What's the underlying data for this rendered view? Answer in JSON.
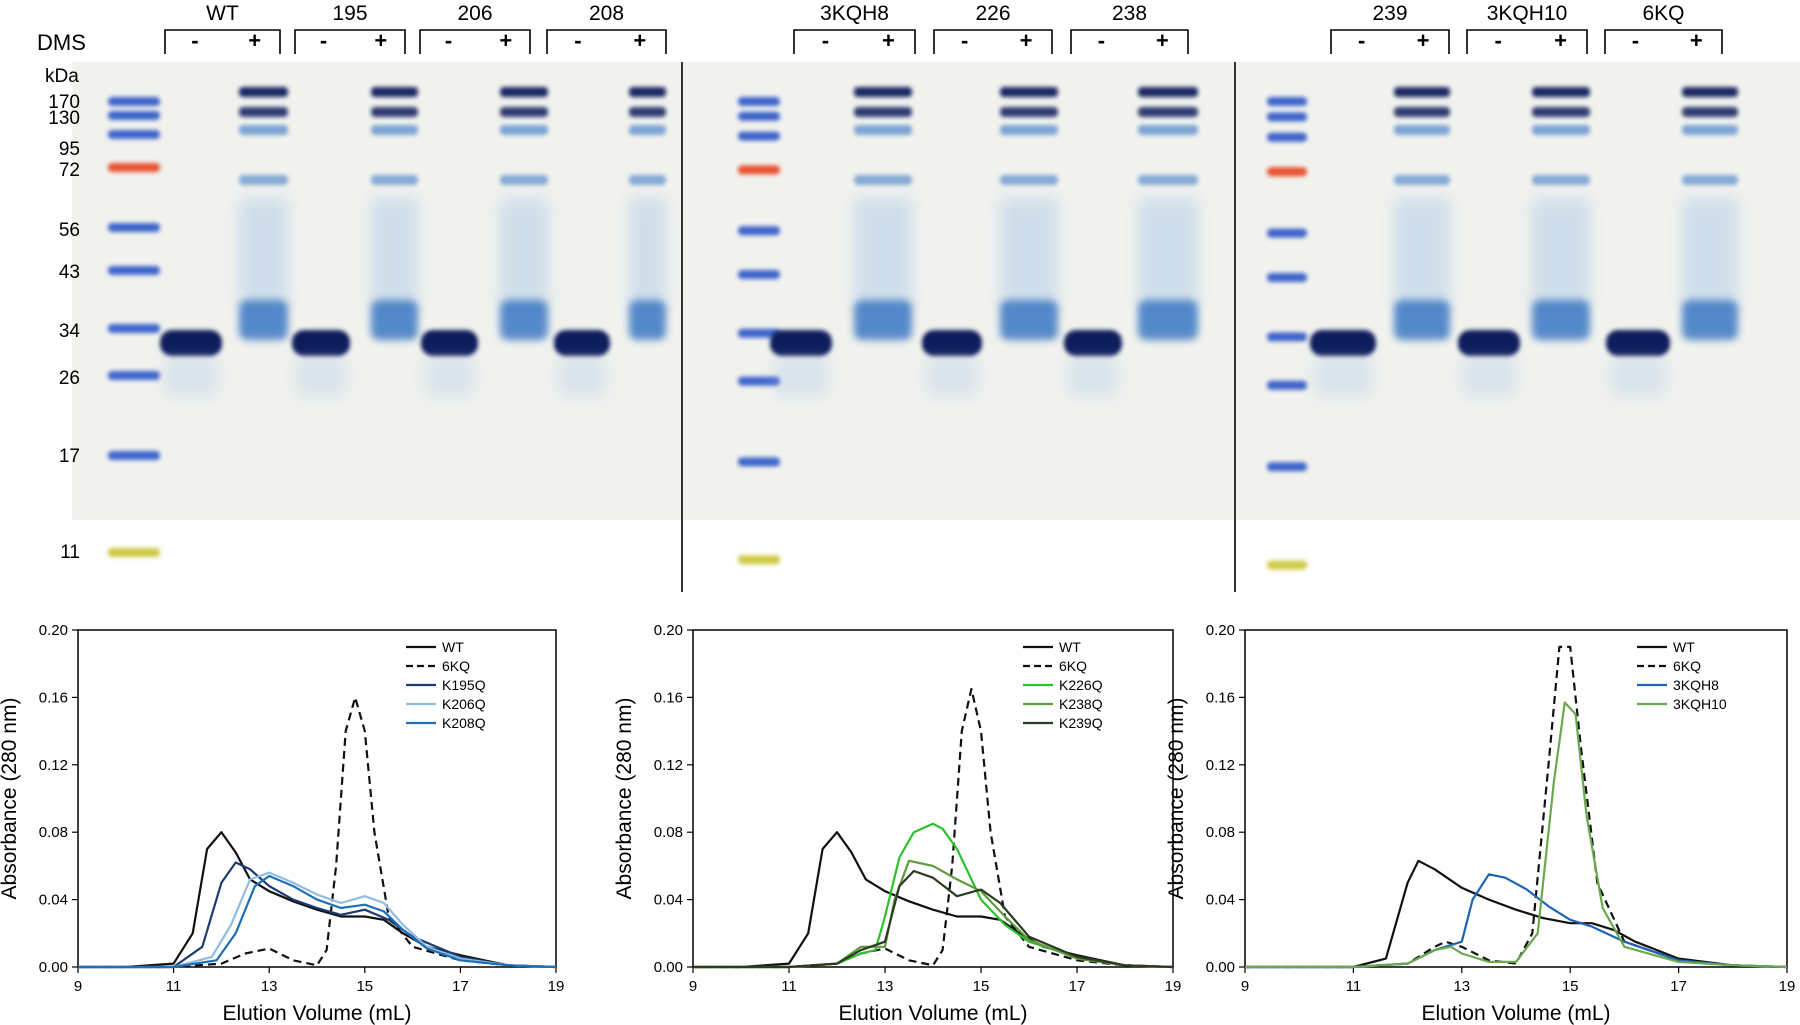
{
  "gel": {
    "dms_label": "DMS",
    "kda_label": "kDa",
    "minus": "-",
    "plus": "+",
    "markers": [
      {
        "label": "170",
        "color": "#2b55c8"
      },
      {
        "label": "130",
        "color": "#2b55c8"
      },
      {
        "label": "95",
        "color": "#2b55c8"
      },
      {
        "label": "72",
        "color": "#e8401c"
      },
      {
        "label": "56",
        "color": "#2b55c8"
      },
      {
        "label": "43",
        "color": "#2b55c8"
      },
      {
        "label": "34",
        "color": "#2b55c8"
      },
      {
        "label": "26",
        "color": "#2b55c8"
      },
      {
        "label": "17",
        "color": "#2b55c8"
      },
      {
        "label": "11",
        "color": "#c9c430"
      }
    ],
    "panels": [
      {
        "samples": [
          "WT",
          "195",
          "206",
          "208"
        ]
      },
      {
        "samples": [
          "3KQH8",
          "226",
          "238"
        ]
      },
      {
        "samples": [
          "239",
          "3KQH10",
          "6KQ"
        ]
      }
    ],
    "colors": {
      "band_dark": "#0c1f5c",
      "band_mid": "#2d6fc1",
      "band_light": "#8fb8e3",
      "gel_bg": "#f1f2ee"
    }
  },
  "chart_data": [
    {
      "type": "line",
      "xlabel": "Elution Volume (mL)",
      "ylabel": "Absorbance (280 nm)",
      "xlim": [
        9,
        19
      ],
      "ylim": [
        0,
        0.2
      ],
      "xticks": [
        "9",
        "11",
        "13",
        "15",
        "17",
        "19"
      ],
      "yticks": [
        "0.00",
        "0.04",
        "0.08",
        "0.12",
        "0.16",
        "0.20"
      ],
      "legend_position": "top-right",
      "series": [
        {
          "name": "WT",
          "color": "#111111",
          "dash": false,
          "x": [
            9,
            10,
            11,
            11.4,
            11.7,
            12,
            12.3,
            12.6,
            13,
            13.5,
            14,
            14.5,
            15,
            15.4,
            15.8,
            16.3,
            17,
            17.5,
            18,
            19
          ],
          "y": [
            0,
            0,
            0.002,
            0.02,
            0.07,
            0.08,
            0.068,
            0.052,
            0.045,
            0.039,
            0.034,
            0.03,
            0.03,
            0.028,
            0.02,
            0.012,
            0.007,
            0.004,
            0.001,
            0
          ]
        },
        {
          "name": "6KQ",
          "color": "#111111",
          "dash": true,
          "x": [
            9,
            11,
            12,
            12.5,
            13,
            13.5,
            14,
            14.2,
            14.4,
            14.6,
            14.8,
            15,
            15.2,
            15.5,
            16,
            17,
            18,
            19
          ],
          "y": [
            0,
            0,
            0.002,
            0.008,
            0.011,
            0.004,
            0.001,
            0.01,
            0.06,
            0.14,
            0.16,
            0.14,
            0.08,
            0.03,
            0.012,
            0.004,
            0.001,
            0
          ]
        },
        {
          "name": "K195Q",
          "color": "#1f3b73",
          "dash": false,
          "x": [
            9,
            11,
            11.6,
            12,
            12.3,
            12.6,
            13,
            13.5,
            14,
            14.5,
            15,
            15.5,
            16,
            17,
            18,
            19
          ],
          "y": [
            0,
            0,
            0.012,
            0.05,
            0.062,
            0.058,
            0.048,
            0.04,
            0.035,
            0.031,
            0.034,
            0.028,
            0.018,
            0.006,
            0.001,
            0
          ]
        },
        {
          "name": "K206Q",
          "color": "#8fbde3",
          "dash": false,
          "x": [
            9,
            11,
            11.8,
            12.2,
            12.6,
            13,
            13.5,
            14,
            14.5,
            15,
            15.4,
            15.8,
            16.3,
            17,
            18,
            19
          ],
          "y": [
            0,
            0,
            0.006,
            0.025,
            0.052,
            0.056,
            0.05,
            0.043,
            0.038,
            0.042,
            0.038,
            0.025,
            0.012,
            0.005,
            0.001,
            0
          ]
        },
        {
          "name": "K208Q",
          "color": "#1f6fb4",
          "dash": false,
          "x": [
            9,
            11,
            11.9,
            12.3,
            12.7,
            13,
            13.5,
            14,
            14.5,
            15,
            15.4,
            15.8,
            16.3,
            17,
            18,
            19
          ],
          "y": [
            0,
            0,
            0.004,
            0.02,
            0.048,
            0.054,
            0.048,
            0.04,
            0.035,
            0.037,
            0.033,
            0.022,
            0.011,
            0.004,
            0.001,
            0
          ]
        }
      ]
    },
    {
      "type": "line",
      "xlabel": "Elution Volume (mL)",
      "ylabel": "Absorbance (280 nm)",
      "xlim": [
        9,
        19
      ],
      "ylim": [
        0,
        0.2
      ],
      "xticks": [
        "9",
        "11",
        "13",
        "15",
        "17",
        "19"
      ],
      "yticks": [
        "0.00",
        "0.04",
        "0.08",
        "0.12",
        "0.16",
        "0.20"
      ],
      "legend_position": "top-right",
      "series": [
        {
          "name": "WT",
          "color": "#111111",
          "dash": false,
          "x": [
            9,
            10,
            11,
            11.4,
            11.7,
            12,
            12.3,
            12.6,
            13,
            13.5,
            14,
            14.5,
            15,
            15.4,
            15.8,
            16.3,
            17,
            17.5,
            18,
            19
          ],
          "y": [
            0,
            0,
            0.002,
            0.02,
            0.07,
            0.08,
            0.068,
            0.052,
            0.045,
            0.039,
            0.034,
            0.03,
            0.03,
            0.028,
            0.02,
            0.012,
            0.007,
            0.004,
            0.001,
            0
          ]
        },
        {
          "name": "6KQ",
          "color": "#111111",
          "dash": true,
          "x": [
            9,
            11,
            12,
            12.5,
            13,
            13.5,
            14,
            14.2,
            14.4,
            14.6,
            14.8,
            15,
            15.2,
            15.5,
            16,
            17,
            18,
            19
          ],
          "y": [
            0,
            0,
            0.002,
            0.008,
            0.011,
            0.004,
            0.001,
            0.01,
            0.06,
            0.14,
            0.165,
            0.14,
            0.08,
            0.03,
            0.012,
            0.004,
            0.001,
            0
          ]
        },
        {
          "name": "K226Q",
          "color": "#2fbf2f",
          "dash": false,
          "x": [
            9,
            11,
            12,
            12.5,
            12.8,
            13,
            13.3,
            13.6,
            14,
            14.2,
            14.5,
            15,
            15.5,
            16,
            17,
            18,
            19
          ],
          "y": [
            0,
            0,
            0.002,
            0.008,
            0.01,
            0.03,
            0.065,
            0.08,
            0.085,
            0.082,
            0.07,
            0.04,
            0.025,
            0.015,
            0.006,
            0.001,
            0
          ]
        },
        {
          "name": "K238Q",
          "color": "#5f9a3c",
          "dash": false,
          "x": [
            9,
            11,
            12,
            12.5,
            13,
            13.2,
            13.5,
            14,
            14.5,
            15,
            15.5,
            16,
            17,
            18,
            19
          ],
          "y": [
            0,
            0,
            0.002,
            0.012,
            0.012,
            0.04,
            0.063,
            0.06,
            0.052,
            0.045,
            0.03,
            0.016,
            0.005,
            0.001,
            0
          ]
        },
        {
          "name": "K239Q",
          "color": "#2b3b22",
          "dash": false,
          "x": [
            9,
            11,
            12,
            12.5,
            13,
            13.3,
            13.6,
            14,
            14.5,
            15,
            15.4,
            16,
            17,
            18,
            19
          ],
          "y": [
            0,
            0,
            0.002,
            0.01,
            0.015,
            0.048,
            0.057,
            0.053,
            0.042,
            0.046,
            0.038,
            0.018,
            0.006,
            0.001,
            0
          ]
        }
      ]
    },
    {
      "type": "line",
      "xlabel": "Elution Volume (mL)",
      "ylabel": "Absorbance (280 nm)",
      "xlim": [
        9,
        19
      ],
      "ylim": [
        0,
        0.2
      ],
      "xticks": [
        "9",
        "11",
        "13",
        "15",
        "17",
        "19"
      ],
      "yticks": [
        "0.00",
        "0.04",
        "0.08",
        "0.12",
        "0.16",
        "0.20"
      ],
      "legend_position": "top-right",
      "series": [
        {
          "name": "WT",
          "color": "#111111",
          "dash": false,
          "x": [
            9,
            11,
            11.6,
            12,
            12.2,
            12.5,
            13,
            13.5,
            14,
            14.5,
            15,
            15.4,
            15.8,
            16.2,
            17,
            18,
            19
          ],
          "y": [
            0,
            0,
            0.005,
            0.05,
            0.063,
            0.058,
            0.047,
            0.04,
            0.034,
            0.029,
            0.026,
            0.026,
            0.022,
            0.015,
            0.005,
            0.001,
            0
          ]
        },
        {
          "name": "6KQ",
          "color": "#111111",
          "dash": true,
          "x": [
            9,
            11,
            12,
            12.5,
            12.7,
            13,
            13.5,
            14,
            14.3,
            14.6,
            14.8,
            15,
            15.2,
            15.5,
            16,
            17,
            18,
            19
          ],
          "y": [
            0,
            0,
            0.002,
            0.012,
            0.015,
            0.012,
            0.004,
            0.002,
            0.02,
            0.12,
            0.19,
            0.19,
            0.13,
            0.05,
            0.015,
            0.004,
            0.001,
            0
          ]
        },
        {
          "name": "3KQH8",
          "color": "#1f64b4",
          "dash": false,
          "x": [
            9,
            11,
            12,
            12.5,
            13,
            13.2,
            13.5,
            13.8,
            14.2,
            14.6,
            15,
            15.4,
            16,
            17,
            18,
            19
          ],
          "y": [
            0,
            0,
            0.002,
            0.01,
            0.015,
            0.04,
            0.055,
            0.053,
            0.046,
            0.036,
            0.028,
            0.024,
            0.015,
            0.004,
            0.001,
            0
          ]
        },
        {
          "name": "3KQH10",
          "color": "#6aa84f",
          "dash": false,
          "x": [
            9,
            11,
            12,
            12.5,
            12.8,
            13,
            13.5,
            14,
            14.4,
            14.7,
            14.9,
            15.1,
            15.3,
            15.6,
            16,
            17,
            18,
            19
          ],
          "y": [
            0,
            0,
            0.002,
            0.01,
            0.012,
            0.008,
            0.003,
            0.003,
            0.02,
            0.11,
            0.157,
            0.15,
            0.09,
            0.035,
            0.012,
            0.003,
            0.001,
            0
          ]
        }
      ]
    }
  ]
}
